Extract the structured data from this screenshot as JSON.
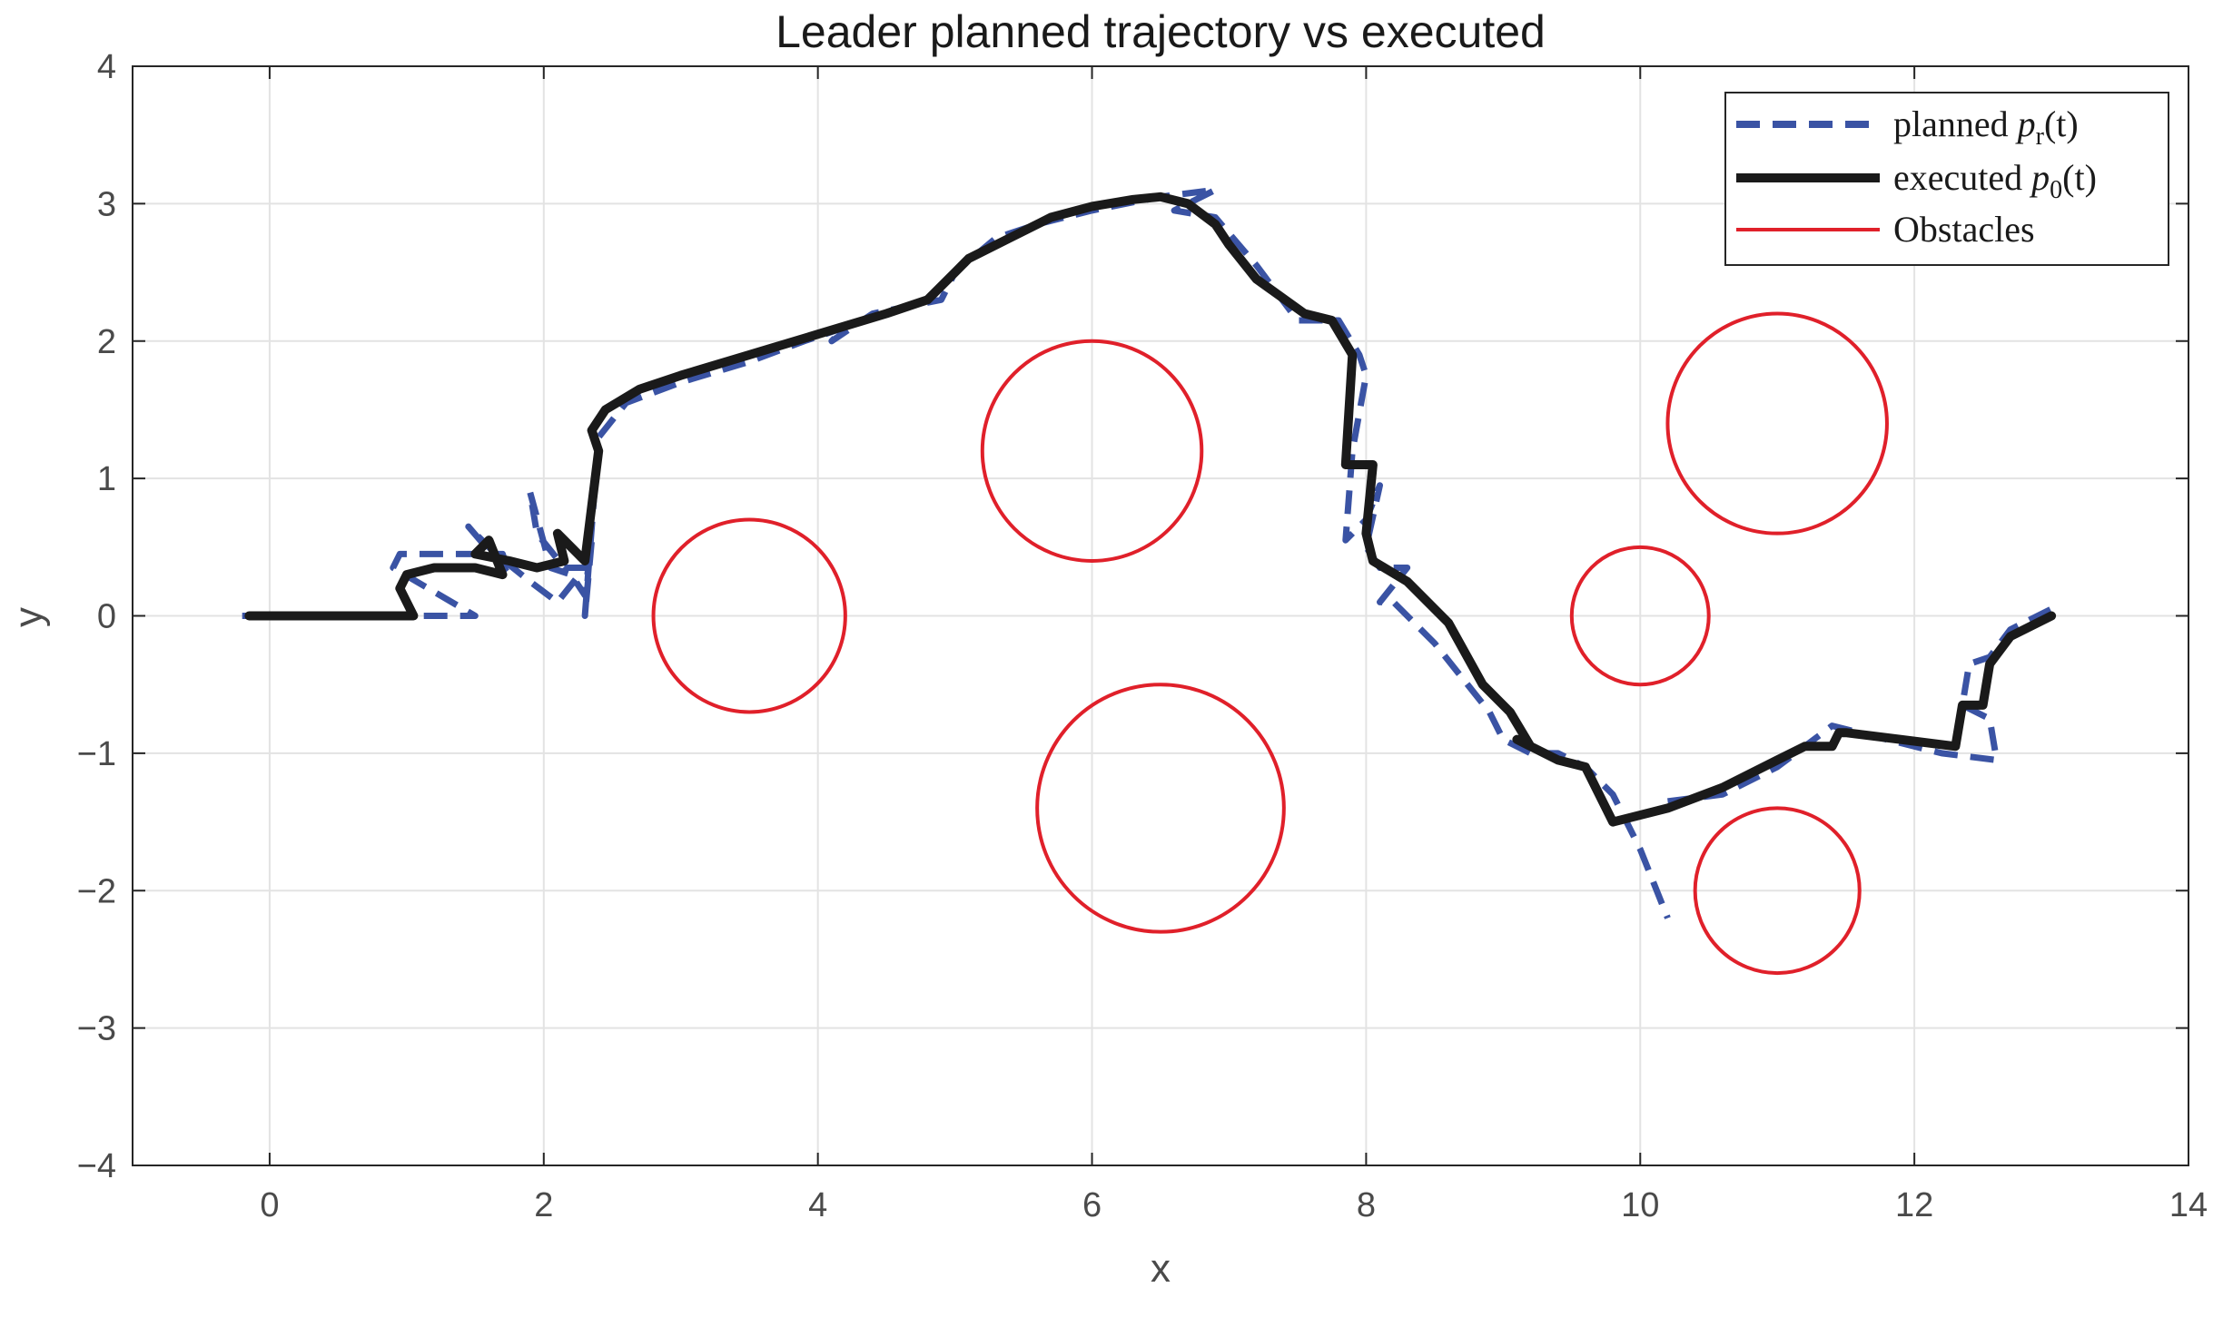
{
  "chart_data": {
    "type": "line",
    "title": "Leader planned trajectory vs executed",
    "xlabel": "x",
    "ylabel": "y",
    "xlim": [
      -1,
      14
    ],
    "ylim": [
      -4,
      4
    ],
    "xticks": [
      0,
      2,
      4,
      6,
      8,
      10,
      12,
      14
    ],
    "yticks": [
      -4,
      -3,
      -2,
      -1,
      0,
      1,
      2,
      3,
      4
    ],
    "xtick_labels": [
      "0",
      "2",
      "4",
      "6",
      "8",
      "10",
      "12",
      "14"
    ],
    "ytick_labels": [
      "−4",
      "−3",
      "−2",
      "−1",
      "0",
      "1",
      "2",
      "3",
      "4"
    ],
    "grid": true,
    "legend_position": "top-right",
    "legend": {
      "planned": {
        "main": "planned ",
        "var": "p",
        "sub": "r",
        "tail": "(t)"
      },
      "executed": {
        "main": "executed ",
        "var": "p",
        "sub": "0",
        "tail": "(t)"
      },
      "obstacles": {
        "main": "Obstacles"
      }
    },
    "series": [
      {
        "key": "planned",
        "style": "dashed",
        "color": "#3a53a4",
        "x": [
          -0.2,
          1.0,
          1.5,
          0.9,
          0.95,
          1.3,
          1.7,
          1.75,
          1.45,
          1.65,
          1.9,
          2.1,
          2.3,
          2.15,
          1.95,
          1.9,
          2.05,
          2.2,
          2.3,
          2.35,
          2.3,
          2.4,
          2.6,
          3.0,
          3.5,
          3.9,
          4.2,
          4.1,
          4.4,
          4.9,
          5.0,
          5.3,
          5.6,
          6.0,
          6.5,
          6.9,
          6.6,
          6.9,
          7.2,
          7.5,
          7.8,
          7.95,
          8.0,
          7.9,
          7.85,
          8.0,
          8.1,
          8.0,
          8.1,
          8.3,
          8.1,
          8.2,
          8.5,
          8.9,
          9.0,
          9.2,
          9.4,
          9.6,
          9.8,
          10.0,
          10.2
        ],
        "y": [
          0.0,
          0.0,
          0.0,
          0.35,
          0.45,
          0.45,
          0.45,
          0.3,
          0.65,
          0.45,
          0.25,
          0.1,
          0.35,
          0.35,
          0.6,
          0.9,
          0.35,
          0.3,
          0.15,
          0.55,
          0.0,
          1.3,
          1.55,
          1.7,
          1.85,
          2.0,
          2.1,
          2.0,
          2.2,
          2.3,
          2.5,
          2.75,
          2.85,
          2.95,
          3.05,
          3.1,
          2.95,
          2.9,
          2.55,
          2.15,
          2.15,
          1.9,
          1.75,
          1.2,
          0.55,
          0.7,
          0.95,
          0.5,
          0.35,
          0.35,
          0.1,
          0.1,
          -0.2,
          -0.7,
          -0.9,
          -1.0,
          -1.0,
          -1.1,
          -1.3,
          -1.7,
          -2.2
        ]
      },
      {
        "key": "planned_tail",
        "style": "dashed",
        "color": "#3a53a4",
        "x": [
          10.2,
          10.6,
          11.0,
          11.4,
          11.8,
          12.2,
          12.6,
          12.55,
          12.35,
          12.4,
          12.55,
          12.7,
          13.0
        ],
        "y": [
          -1.35,
          -1.3,
          -1.1,
          -0.8,
          -0.9,
          -1.0,
          -1.05,
          -0.75,
          -0.65,
          -0.35,
          -0.3,
          -0.1,
          0.05
        ]
      },
      {
        "key": "executed",
        "style": "solid",
        "color": "#1a1a1a",
        "x": [
          -0.15,
          1.0,
          1.05,
          0.95,
          1.0,
          1.2,
          1.5,
          1.7,
          1.6,
          1.5,
          1.75,
          1.95,
          2.15,
          2.1,
          2.25,
          2.3,
          2.4,
          2.35,
          2.45,
          2.7,
          3.0,
          3.5,
          4.0,
          4.5,
          4.8,
          5.0,
          5.1,
          5.4,
          5.7,
          6.0,
          6.3,
          6.5,
          6.7,
          6.9,
          7.0,
          7.2,
          7.55,
          7.75,
          7.9,
          7.85,
          7.85,
          8.05,
          8.0,
          8.05,
          8.3,
          8.6,
          8.85,
          9.05,
          9.2,
          9.1,
          9.4,
          9.6,
          9.8,
          10.2,
          10.6,
          11.0,
          11.2,
          11.4,
          11.45,
          11.5,
          11.9,
          12.3,
          12.35,
          12.5,
          12.55,
          12.7,
          13.0
        ],
        "y": [
          0.0,
          0.0,
          0.0,
          0.2,
          0.3,
          0.35,
          0.35,
          0.3,
          0.55,
          0.45,
          0.4,
          0.35,
          0.4,
          0.6,
          0.45,
          0.4,
          1.2,
          1.35,
          1.5,
          1.65,
          1.75,
          1.9,
          2.05,
          2.2,
          2.3,
          2.5,
          2.6,
          2.75,
          2.9,
          2.98,
          3.03,
          3.05,
          3.0,
          2.85,
          2.7,
          2.45,
          2.2,
          2.15,
          1.9,
          1.1,
          1.1,
          1.1,
          0.6,
          0.4,
          0.25,
          -0.05,
          -0.5,
          -0.7,
          -0.95,
          -0.9,
          -1.05,
          -1.1,
          -1.5,
          -1.4,
          -1.25,
          -1.05,
          -0.95,
          -0.95,
          -0.85,
          -0.85,
          -0.9,
          -0.95,
          -0.65,
          -0.65,
          -0.35,
          -0.15,
          0.0
        ]
      }
    ],
    "obstacles": [
      {
        "cx": 3.5,
        "cy": 0.0,
        "r": 0.7
      },
      {
        "cx": 6.0,
        "cy": 1.2,
        "r": 0.8
      },
      {
        "cx": 6.5,
        "cy": -1.4,
        "r": 0.9
      },
      {
        "cx": 10.0,
        "cy": 0.0,
        "r": 0.5
      },
      {
        "cx": 11.0,
        "cy": 1.4,
        "r": 0.8
      },
      {
        "cx": 11.0,
        "cy": -2.0,
        "r": 0.6
      }
    ],
    "obstacle_color": "#e0202a"
  }
}
